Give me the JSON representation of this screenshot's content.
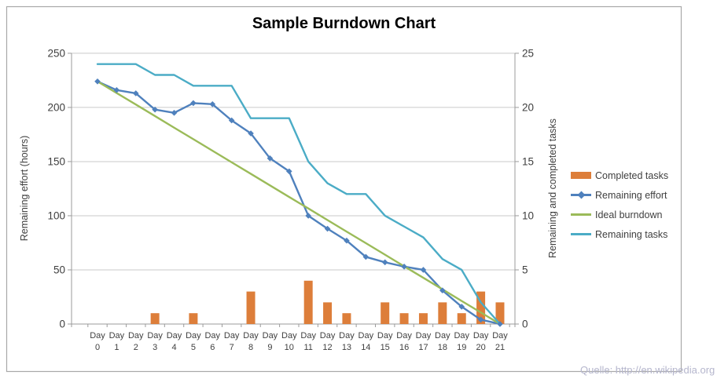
{
  "watermark": "Quelle: http://en.wikipedia.org",
  "colors": {
    "background": "#ffffff",
    "chart_border": "#a9a9a9",
    "gridline": "#cacaca",
    "axis_line": "#9b9b9b",
    "tick_text": "#3f3f3f",
    "title_text": "#000000",
    "watermark_text": "#b5b6cd"
  },
  "chart_data": {
    "type": "combo-bar-line",
    "title": "Sample Burndown Chart",
    "categories": [
      "Day 0",
      "Day 1",
      "Day 2",
      "Day 3",
      "Day 4",
      "Day 5",
      "Day 6",
      "Day 7",
      "Day 8",
      "Day 9",
      "Day 10",
      "Day 11",
      "Day 12",
      "Day 13",
      "Day 14",
      "Day 15",
      "Day 16",
      "Day 17",
      "Day 18",
      "Day 19",
      "Day 20",
      "Day 21"
    ],
    "left_axis": {
      "label": "Remaining effort (hours)",
      "min": 0,
      "max": 250,
      "step": 50
    },
    "right_axis": {
      "label": "Remaining and  completed tasks",
      "min": 0,
      "max": 25,
      "step": 5
    },
    "gridlines": "horizontal",
    "legend_position": "right",
    "series": [
      {
        "name": "Completed tasks",
        "type": "bar",
        "axis": "right",
        "color": "#dd7e3a",
        "values": [
          0,
          0,
          0,
          1,
          0,
          1,
          0,
          0,
          3,
          0,
          0,
          4,
          2,
          1,
          0,
          2,
          1,
          1,
          2,
          1,
          3,
          2
        ]
      },
      {
        "name": "Remaining effort",
        "type": "line",
        "axis": "left",
        "marker": "diamond",
        "color": "#4f81bd",
        "values": [
          224,
          216,
          213,
          198,
          195,
          204,
          203,
          188,
          176,
          153,
          141,
          100,
          88,
          77,
          62,
          57,
          53,
          50,
          31,
          16,
          4,
          0
        ]
      },
      {
        "name": "Ideal burndown",
        "type": "line",
        "axis": "left",
        "color": "#9bbb59",
        "values": [
          224,
          213.3,
          202.7,
          192,
          181.3,
          170.7,
          160,
          149.3,
          138.7,
          128,
          117.3,
          106.7,
          96,
          85.3,
          74.7,
          64,
          53.3,
          42.7,
          32,
          21.3,
          10.7,
          0
        ]
      },
      {
        "name": "Remaining tasks",
        "type": "line",
        "axis": "right",
        "color": "#4bacc6",
        "values": [
          24,
          24,
          24,
          23,
          23,
          22,
          22,
          22,
          19,
          19,
          19,
          15,
          13,
          12,
          12,
          10,
          9,
          8,
          6,
          5,
          2,
          0
        ]
      }
    ]
  }
}
